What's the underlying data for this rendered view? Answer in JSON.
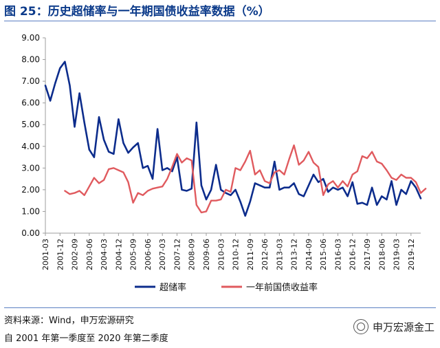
{
  "header": {
    "title": "图 25：历史超储率与一年期国债收益率数据（%）"
  },
  "footer": {
    "source": "资料来源：Wind，申万宏源研究",
    "period": "自 2001 年第一季度至 2020 年第二季度",
    "brand": "申万宏源金工"
  },
  "colors": {
    "series1": "#0c2c8c",
    "series2": "#e05a5e",
    "axis": "#9c9c9c",
    "text": "#111111"
  },
  "chart_data": {
    "type": "line",
    "title": "历史超储率与一年期国债收益率数据（%）",
    "xlabel": "",
    "ylabel": "",
    "ylim": [
      0,
      9
    ],
    "yticks": [
      "0.00",
      "1.00",
      "2.00",
      "3.00",
      "4.00",
      "5.00",
      "6.00",
      "7.00",
      "8.00",
      "9.00"
    ],
    "xticks": [
      "2001-03",
      "2001-12",
      "2002-09",
      "2003-06",
      "2004-03",
      "2004-12",
      "2005-09",
      "2006-06",
      "2007-03",
      "2007-12",
      "2008-09",
      "2009-06",
      "2010-03",
      "2010-12",
      "2011-09",
      "2012-06",
      "2013-03",
      "2013-12",
      "2014-09",
      "2015-06",
      "2016-03",
      "2016-12",
      "2017-09",
      "2018-06",
      "2019-03",
      "2019-12"
    ],
    "xtick_step": 3,
    "legend_position": "bottom",
    "series": [
      {
        "name": "超储率",
        "start_index": 0,
        "values": [
          6.8,
          6.1,
          6.9,
          7.6,
          7.9,
          6.8,
          4.9,
          6.45,
          5.1,
          3.85,
          3.5,
          5.35,
          4.3,
          3.75,
          3.65,
          5.25,
          4.15,
          3.7,
          3.95,
          4.15,
          3.0,
          3.1,
          2.5,
          4.8,
          2.9,
          3.0,
          2.85,
          3.5,
          2.0,
          1.95,
          2.05,
          5.1,
          2.2,
          1.55,
          2.0,
          3.15,
          2.0,
          1.85,
          1.75,
          2.0,
          1.45,
          0.8,
          1.45,
          2.3,
          2.2,
          2.1,
          2.1,
          3.3,
          2.0,
          2.1,
          2.1,
          2.3,
          1.8,
          1.7,
          2.2,
          2.7,
          2.35,
          2.5,
          1.9,
          2.1,
          2.0,
          2.1,
          1.7,
          2.35,
          1.35,
          1.4,
          1.3,
          2.1,
          1.3,
          1.7,
          1.55,
          2.4,
          1.3,
          2.0,
          1.8,
          2.4,
          2.1,
          1.6
        ]
      },
      {
        "name": "一年前国债收益率",
        "start_index": 4,
        "values": [
          1.95,
          1.8,
          1.85,
          1.95,
          1.75,
          2.15,
          2.55,
          2.3,
          2.45,
          2.95,
          3.0,
          2.9,
          2.8,
          2.35,
          1.4,
          1.85,
          1.75,
          1.95,
          2.05,
          2.1,
          2.15,
          2.5,
          3.05,
          3.65,
          3.25,
          3.45,
          3.35,
          1.3,
          0.95,
          1.0,
          1.5,
          1.5,
          1.55,
          2.0,
          1.9,
          3.0,
          2.9,
          3.3,
          3.8,
          2.7,
          2.9,
          2.4,
          2.3,
          2.8,
          2.9,
          2.7,
          3.4,
          4.05,
          3.15,
          3.35,
          3.75,
          3.25,
          3.05,
          1.75,
          2.25,
          2.4,
          2.1,
          2.4,
          2.15,
          2.7,
          2.85,
          3.55,
          3.45,
          3.75,
          3.3,
          3.2,
          2.9,
          2.55,
          2.45,
          2.7,
          2.55,
          2.55,
          2.35,
          1.85,
          2.05
        ]
      }
    ]
  }
}
